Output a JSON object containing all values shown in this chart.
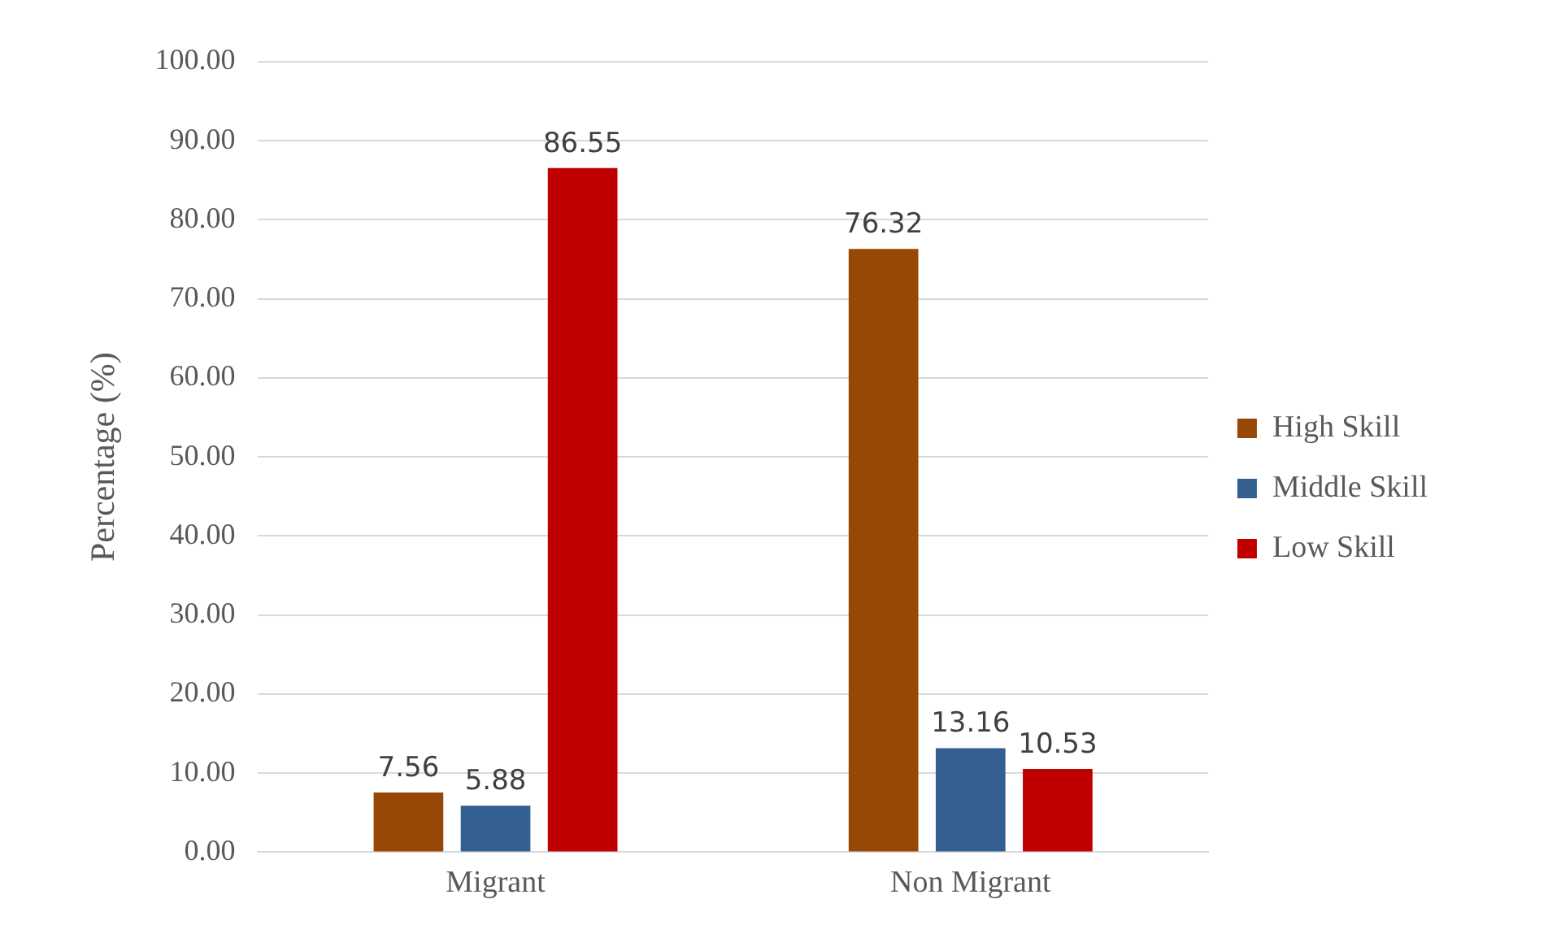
{
  "chart_data": {
    "type": "bar",
    "ylabel": "Percentage (%)",
    "categories": [
      "Migrant",
      "Non Migrant"
    ],
    "series": [
      {
        "name": "High Skill",
        "color": "#974706",
        "values": [
          7.56,
          76.32
        ]
      },
      {
        "name": "Middle Skill",
        "color": "#335f91",
        "values": [
          5.88,
          13.16
        ]
      },
      {
        "name": "Low Skill",
        "color": "#c00000",
        "values": [
          86.55,
          10.53
        ]
      }
    ],
    "ylim": [
      0,
      100
    ],
    "yticks": [
      {
        "value": 0,
        "label": "0.00"
      },
      {
        "value": 10,
        "label": "10.00"
      },
      {
        "value": 20,
        "label": "20.00"
      },
      {
        "value": 30,
        "label": "30.00"
      },
      {
        "value": 40,
        "label": "40.00"
      },
      {
        "value": 50,
        "label": "50.00"
      },
      {
        "value": 60,
        "label": "60.00"
      },
      {
        "value": 70,
        "label": "70.00"
      },
      {
        "value": 80,
        "label": "80.00"
      },
      {
        "value": 90,
        "label": "90.00"
      },
      {
        "value": 100,
        "label": "100.00"
      }
    ],
    "grid": "y",
    "legend": "right",
    "data_labels": true
  }
}
